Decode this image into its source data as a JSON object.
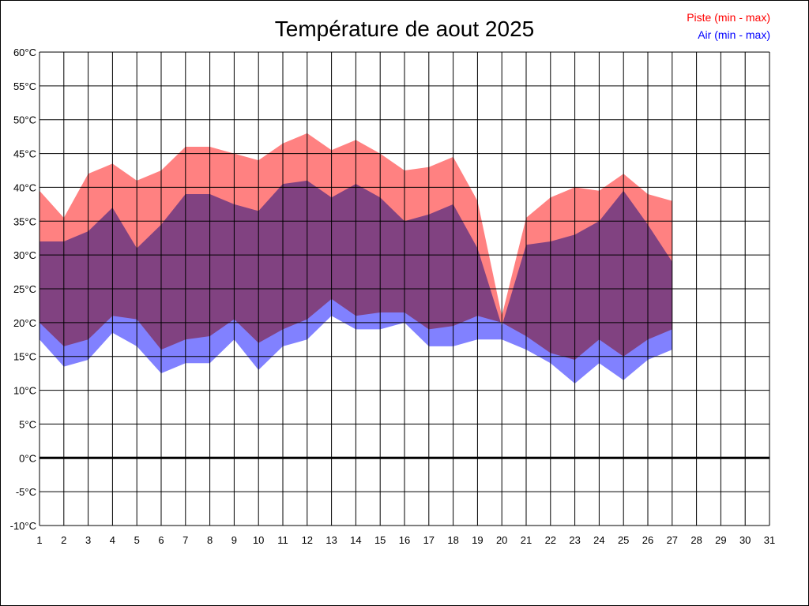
{
  "chart_data": {
    "type": "area",
    "title": "Température de aout 2025",
    "x_range": [
      1,
      31
    ],
    "y_range": [
      -10,
      60
    ],
    "grid": true,
    "legend_position": "top-right",
    "x_ticks": [
      "1",
      "2",
      "3",
      "4",
      "5",
      "6",
      "7",
      "8",
      "9",
      "10",
      "11",
      "12",
      "13",
      "14",
      "15",
      "16",
      "17",
      "18",
      "19",
      "20",
      "21",
      "22",
      "23",
      "24",
      "25",
      "26",
      "27",
      "28",
      "29",
      "30",
      "31"
    ],
    "y_ticks": [
      "60°C",
      "55°C",
      "50°C",
      "45°C",
      "40°C",
      "35°C",
      "30°C",
      "25°C",
      "20°C",
      "15°C",
      "10°C",
      "5°C",
      "0°C",
      "-5°C",
      "-10°C"
    ],
    "y_tick_values": [
      60,
      55,
      50,
      45,
      40,
      35,
      30,
      25,
      20,
      15,
      10,
      5,
      0,
      -5,
      -10
    ],
    "series": [
      {
        "name": "Piste (min - max)",
        "color": "#ff8080",
        "x": [
          1,
          2,
          3,
          4,
          5,
          6,
          7,
          8,
          9,
          10,
          11,
          12,
          13,
          14,
          15,
          16,
          17,
          18,
          19,
          20,
          21,
          22,
          23,
          24,
          25,
          26,
          27
        ],
        "min": [
          20,
          16.5,
          17.5,
          21,
          20.5,
          16,
          17.5,
          18,
          20.5,
          17,
          19,
          20.5,
          23.5,
          21,
          21.5,
          21.5,
          19,
          19.5,
          21,
          20,
          18,
          15.5,
          14.5,
          17.5,
          15,
          17.5,
          19
        ],
        "max": [
          39.5,
          35.5,
          42,
          43.5,
          41,
          42.5,
          46,
          46,
          45,
          44,
          46.5,
          48,
          45.5,
          47,
          45,
          42.5,
          43,
          44.5,
          38,
          21,
          35.5,
          38.5,
          40,
          39.5,
          42,
          39,
          38
        ]
      },
      {
        "name": "Air (min - max)",
        "color": "#8080ff",
        "x": [
          1,
          2,
          3,
          4,
          5,
          6,
          7,
          8,
          9,
          10,
          11,
          12,
          13,
          14,
          15,
          16,
          17,
          18,
          19,
          20,
          21,
          22,
          23,
          24,
          25,
          26,
          27
        ],
        "min": [
          17.5,
          13.5,
          14.5,
          18.5,
          16.5,
          12.5,
          14,
          14,
          17.5,
          13,
          16.5,
          17.5,
          21,
          19,
          19,
          20,
          16.5,
          16.5,
          17.5,
          17.5,
          16,
          14,
          11,
          14,
          11.5,
          14.5,
          16
        ],
        "max": [
          32,
          32,
          33.5,
          37,
          31,
          34.5,
          39,
          39,
          37.5,
          36.5,
          40.5,
          41,
          38.5,
          40.5,
          38.5,
          35,
          36,
          37.5,
          31,
          19.5,
          31.5,
          32,
          33,
          35,
          39.5,
          34.5,
          29
        ]
      }
    ]
  }
}
